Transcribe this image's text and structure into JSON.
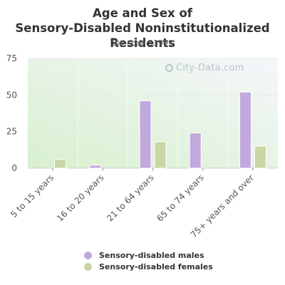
{
  "chart_data": {
    "type": "bar",
    "title": "Age and Sex of Sensory-Disabled Noninstitutionalized Residents",
    "subtitle": "Zip code 33993",
    "categories": [
      "5 to 15 years",
      "16 to 20 years",
      "21 to 64 years",
      "65 to 74 years",
      "75+ years and over"
    ],
    "series": [
      {
        "name": "Sensory-disabled males",
        "color": "#c0a9dc",
        "values": [
          0,
          2,
          46,
          24,
          52
        ]
      },
      {
        "name": "Sensory-disabled females",
        "color": "#c9d6a5",
        "values": [
          6,
          0,
          18,
          0,
          15
        ]
      }
    ],
    "yticks": [
      0,
      25,
      50,
      75
    ],
    "ylim": [
      0,
      75
    ],
    "legend_position": "bottom",
    "grid": true
  },
  "watermark": "City-Data.com"
}
